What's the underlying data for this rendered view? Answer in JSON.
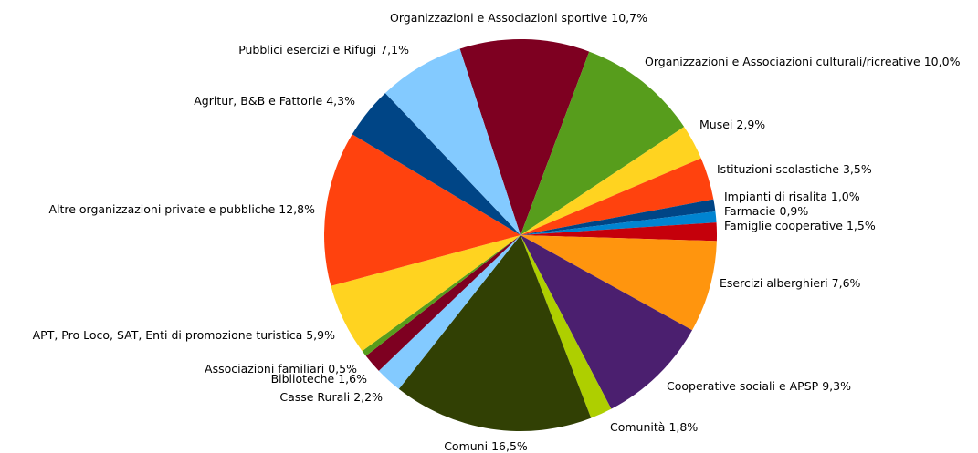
{
  "chart_data": {
    "type": "pie",
    "categories": [
      "Organizzazioni e Associazioni sportive",
      "Organizzazioni e Associazioni culturali/ricreative",
      "Musei",
      "Istituzioni scolastiche",
      "Impianti di risalita",
      "Farmacie",
      "Famiglie cooperative",
      "Esercizi alberghieri",
      "Cooperative sociali e APSP",
      "Comunità",
      "Comuni",
      "Casse Rurali",
      "Biblioteche",
      "Associazioni familiari",
      "APT, Pro Loco, SAT, Enti di promozione turistica",
      "Altre organizzazioni private e pubbliche",
      "Agritur, B&B e Fattorie",
      "Pubblici esercizi e Rifugi"
    ],
    "values": [
      10.7,
      10.0,
      2.9,
      3.5,
      1.0,
      0.9,
      1.5,
      7.6,
      9.3,
      1.8,
      16.5,
      2.2,
      1.6,
      0.5,
      5.9,
      12.8,
      4.3,
      7.1
    ],
    "value_labels": [
      "10,7%",
      "10,0%",
      "2,9%",
      "3,5%",
      "1,0%",
      "0,9%",
      "1,5%",
      "7,6%",
      "9,3%",
      "1,8%",
      "16,5%",
      "2,2%",
      "1,6%",
      "0,5%",
      "5,9%",
      "12,8%",
      "4,3%",
      "7,1%"
    ],
    "colors": [
      "#7e0021",
      "#579d1c",
      "#ffd320",
      "#ff420e",
      "#004586",
      "#0084d1",
      "#c5000b",
      "#ff950e",
      "#4b1f6f",
      "#aecf00",
      "#314004",
      "#83caff",
      "#7e0021",
      "#579d1c",
      "#ffd320",
      "#ff420e",
      "#004586",
      "#83caff"
    ]
  }
}
